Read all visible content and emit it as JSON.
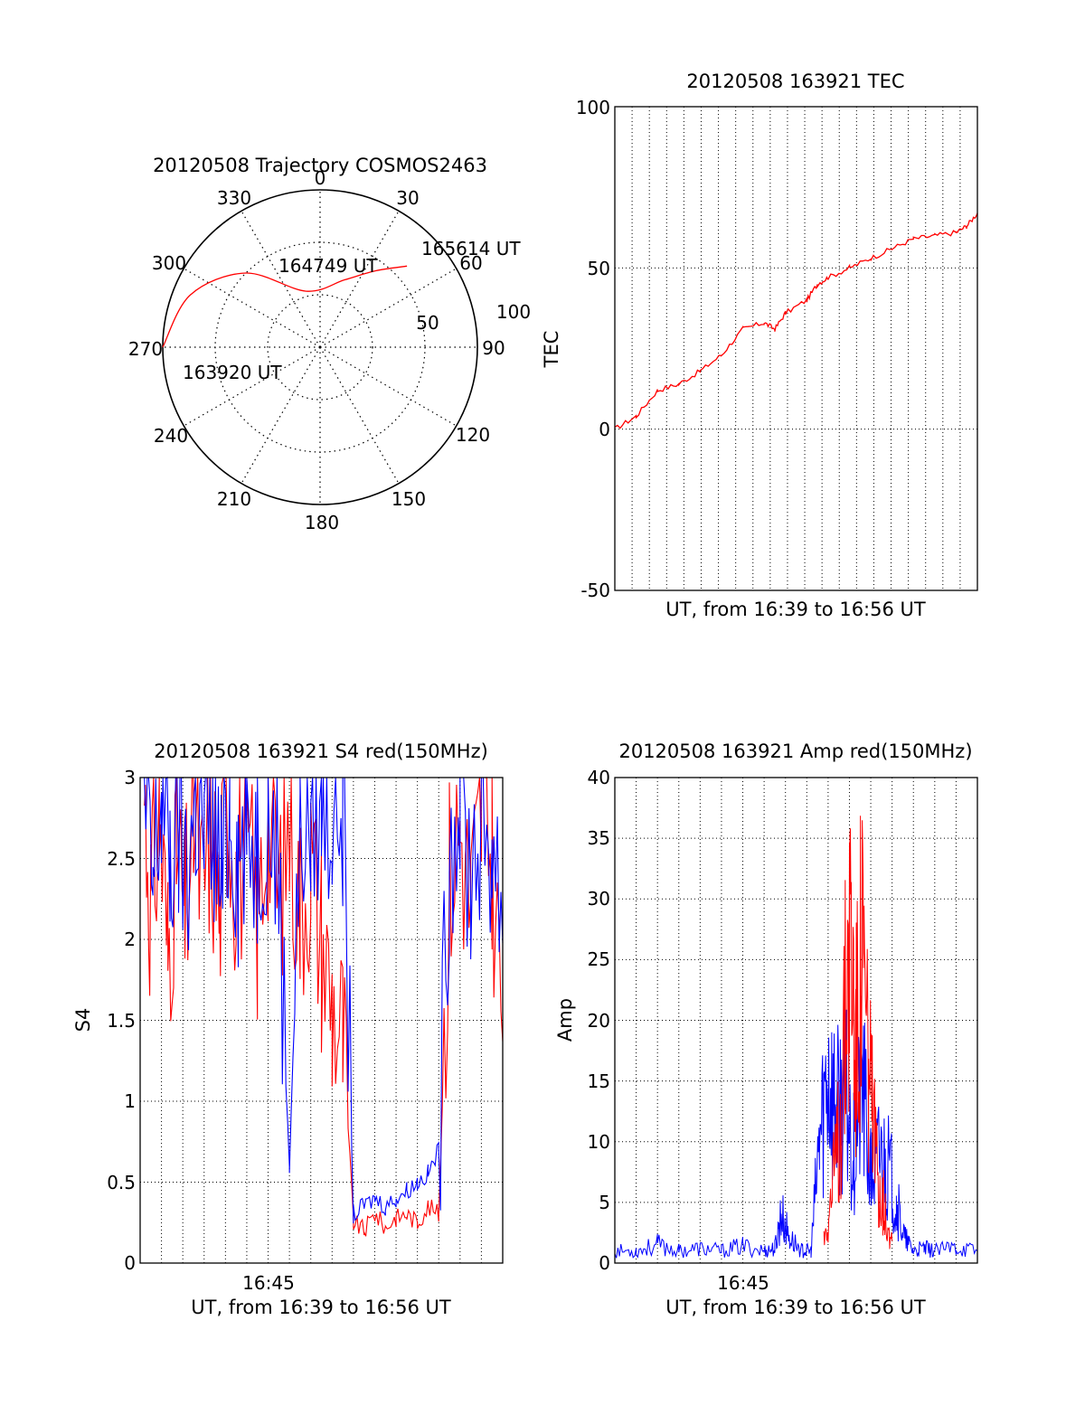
{
  "colors": {
    "red": "#ff0000",
    "blue": "#0000ff",
    "axis": "#000000",
    "grid": "#000000",
    "background": "#ffffff"
  },
  "chart_data": [
    {
      "id": "trajectory",
      "type": "polar",
      "title": "20120508 Trajectory COSMOS2463",
      "azimuth_labels": [
        "0",
        "30",
        "60",
        "90",
        "120",
        "150",
        "180",
        "210",
        "240",
        "270",
        "300",
        "330"
      ],
      "radial_labels": [
        "50",
        "100"
      ],
      "grid": true,
      "series": [
        {
          "color": "red",
          "points": [
            {
              "az": 270,
              "el": 0
            },
            {
              "az": 292,
              "el": 10
            },
            {
              "az": 315,
              "el": 30
            },
            {
              "az": 346,
              "el": 57
            },
            {
              "az": 20,
              "el": 49
            },
            {
              "az": 36,
              "el": 36
            },
            {
              "az": 47,
              "el": 22
            }
          ]
        }
      ],
      "annotations": [
        "163920 UT",
        "164749 UT",
        "165614 UT"
      ]
    },
    {
      "id": "tec",
      "type": "line",
      "title": "20120508 163921 TEC",
      "xlabel": "UT, from 16:39 to 16:56 UT",
      "ylabel": "TEC",
      "xlim": [
        0,
        17
      ],
      "ylim": [
        -50,
        100
      ],
      "yticks": [
        "-50",
        "0",
        "50",
        "100"
      ],
      "grid": true,
      "series": [
        {
          "color": "red",
          "x": [
            0,
            1,
            2,
            3,
            4,
            5,
            6,
            7,
            7.5,
            8,
            9,
            9.5,
            10,
            11,
            12,
            13,
            14,
            15,
            16,
            16.5,
            17
          ],
          "y": [
            0,
            4,
            12,
            14,
            18,
            23,
            31,
            33,
            31,
            36,
            40,
            45,
            47,
            50,
            53,
            56,
            59,
            60,
            61,
            63,
            67
          ]
        }
      ]
    },
    {
      "id": "s4",
      "type": "line",
      "title": "20120508 163921 S4 red(150MHz)",
      "xlabel": "UT, from 16:39 to 16:56 UT",
      "ylabel": "S4",
      "xtick_labels": [
        "16:45"
      ],
      "xlim": [
        0,
        17
      ],
      "ylim": [
        0,
        3
      ],
      "yticks": [
        "0",
        "0.5",
        "1",
        "1.5",
        "2",
        "2.5",
        "3"
      ],
      "grid": true,
      "series": [
        {
          "color": "red",
          "x": [
            0.2,
            0.5,
            0.9,
            1.3,
            1.7,
            2.1,
            2.5,
            2.9,
            3.3,
            3.7,
            4.1,
            4.5,
            5.0,
            5.5,
            6.0,
            6.5,
            7.0,
            7.5,
            8.0,
            8.5,
            9.0,
            9.5,
            10.0,
            10.5,
            11.0,
            11.5,
            12.0,
            12.5,
            13.0,
            13.5,
            14.0,
            14.5,
            15.0,
            15.5,
            16.0,
            16.5,
            17.0
          ],
          "y": [
            2.9,
            2.2,
            2.8,
            1.9,
            2.6,
            2.1,
            2.8,
            2.3,
            2.7,
            2.2,
            2.9,
            2.4,
            2.6,
            2.1,
            2.8,
            2.3,
            2.7,
            2.2,
            2.5,
            2.0,
            1.6,
            1.4,
            0.25,
            0.2,
            0.3,
            0.22,
            0.28,
            0.3,
            0.25,
            0.35,
            0.3,
            2.4,
            2.7,
            2.2,
            2.8,
            2.5,
            1.5
          ]
        },
        {
          "color": "blue",
          "x": [
            0.2,
            0.6,
            1.0,
            1.4,
            1.8,
            2.2,
            2.6,
            3.0,
            3.4,
            3.8,
            4.2,
            4.6,
            5.0,
            5.5,
            6.0,
            6.5,
            7.0,
            7.5,
            8.0,
            8.5,
            9.0,
            9.5,
            10.0,
            10.5,
            11.0,
            11.5,
            12.0,
            12.5,
            13.0,
            13.5,
            14.0,
            14.5,
            15.0,
            15.5,
            16.0,
            16.5,
            17.0
          ],
          "y": [
            2.8,
            2.3,
            2.9,
            2.5,
            2.7,
            2.4,
            2.9,
            2.6,
            2.8,
            2.3,
            2.9,
            2.5,
            2.7,
            2.6,
            2.9,
            2.4,
            0.6,
            2.8,
            2.7,
            2.9,
            2.8,
            2.9,
            0.3,
            0.35,
            0.4,
            0.35,
            0.4,
            0.45,
            0.5,
            0.55,
            0.7,
            2.6,
            2.9,
            2.4,
            2.8,
            2.6,
            2.2
          ]
        }
      ]
    },
    {
      "id": "amp",
      "type": "line",
      "title": "20120508 163921 Amp red(150MHz)",
      "xlabel": "UT, from 16:39 to 16:56 UT",
      "ylabel": "Amp",
      "xtick_labels": [
        "16:45"
      ],
      "xlim": [
        0,
        17
      ],
      "ylim": [
        0,
        40
      ],
      "yticks": [
        "0",
        "5",
        "10",
        "15",
        "20",
        "25",
        "30",
        "35",
        "40"
      ],
      "grid": true,
      "series": [
        {
          "color": "red",
          "x": [
            9.8,
            10.2,
            10.6,
            11.0,
            11.3,
            11.6,
            11.9,
            12.2,
            12.6,
            13.0
          ],
          "y": [
            2,
            6,
            12,
            29,
            18,
            26,
            16,
            9,
            5,
            2
          ]
        },
        {
          "color": "blue",
          "x": [
            0,
            1,
            2,
            3,
            4,
            5,
            6,
            7,
            7.5,
            7.8,
            8.2,
            8.8,
            9.2,
            9.6,
            10.0,
            10.4,
            10.8,
            11.2,
            11.6,
            12.0,
            12.4,
            12.8,
            13.2,
            13.6,
            14.0,
            14.5,
            15,
            16,
            17
          ],
          "y": [
            1,
            1,
            1.5,
            1,
            1.2,
            1,
            1.4,
            1,
            1.2,
            4,
            2,
            1,
            1,
            10,
            16,
            12,
            14,
            9,
            15,
            7,
            9,
            8,
            5,
            2,
            1,
            1.2,
            1,
            1.3,
            1
          ]
        }
      ]
    }
  ]
}
